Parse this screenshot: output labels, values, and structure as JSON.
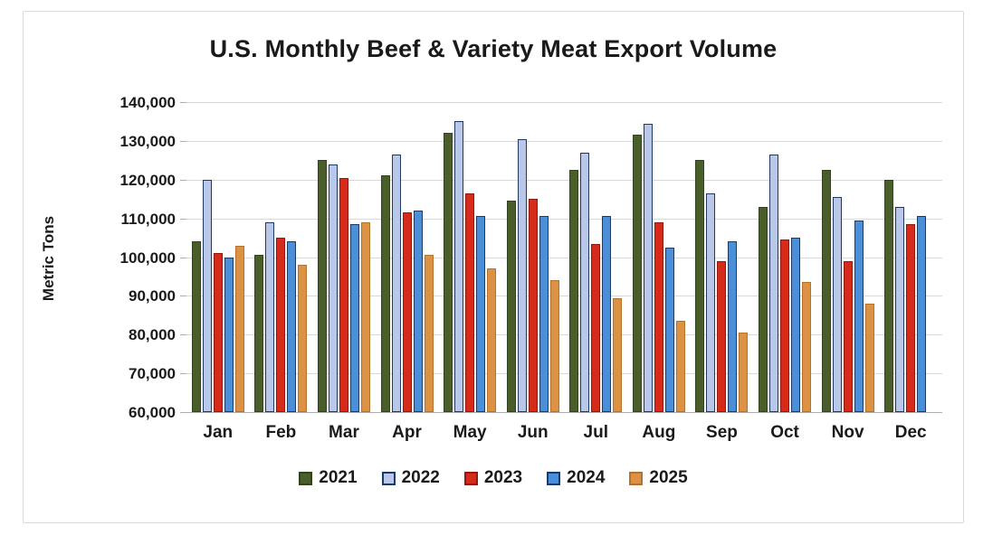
{
  "chart_data": {
    "type": "bar",
    "title": "U.S. Monthly Beef & Variety Meat Export Volume",
    "xlabel": "",
    "ylabel": "Metric Tons",
    "ylim": [
      60000,
      140000
    ],
    "ytick_step": 10000,
    "yticks": [
      "140,000",
      "130,000",
      "120,000",
      "110,000",
      "100,000",
      "90,000",
      "80,000",
      "70,000",
      "60,000"
    ],
    "grid": true,
    "legend_position": "bottom",
    "categories": [
      "Jan",
      "Feb",
      "Mar",
      "Apr",
      "May",
      "Jun",
      "Jul",
      "Aug",
      "Sep",
      "Oct",
      "Nov",
      "Dec"
    ],
    "series": [
      {
        "name": "2021",
        "color": "#4a5e2c",
        "border_color": "#33431d",
        "values": [
          104000,
          100500,
          125000,
          121000,
          132000,
          114500,
          122500,
          131500,
          125000,
          113000,
          122500,
          120000
        ]
      },
      {
        "name": "2022",
        "color": "#b9c7e8",
        "border_color": "#1f3864",
        "values": [
          120000,
          109000,
          124000,
          126500,
          135000,
          130500,
          127000,
          134500,
          116500,
          126500,
          115500,
          113000
        ]
      },
      {
        "name": "2023",
        "color": "#d62b1b",
        "border_color": "#94180c",
        "values": [
          101000,
          105000,
          120500,
          111500,
          116500,
          115000,
          103500,
          109000,
          99000,
          104500,
          99000,
          108500
        ]
      },
      {
        "name": "2024",
        "color": "#4b8fd9",
        "border_color": "#1f3864",
        "values": [
          100000,
          104000,
          108500,
          112000,
          110500,
          110500,
          110500,
          102500,
          104000,
          105000,
          109500,
          110500
        ]
      },
      {
        "name": "2025",
        "color": "#dc9244",
        "border_color": "#b5722c",
        "values": [
          103000,
          98000,
          109000,
          100500,
          97000,
          94000,
          89500,
          83500,
          80500,
          93500,
          88000,
          null
        ]
      }
    ]
  }
}
